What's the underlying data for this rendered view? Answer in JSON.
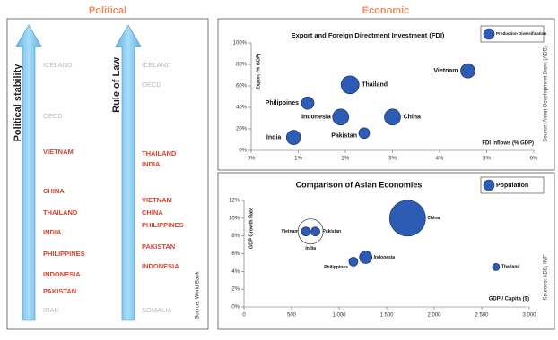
{
  "headers": {
    "political": "Political",
    "economic": "Economic"
  },
  "political": {
    "source": "Source: World Bank",
    "scales": [
      {
        "label": "Political stability",
        "items": [
          "ICELAND",
          "OECD",
          "VIETNAM",
          "CHINA",
          "THAILAND",
          "INDIA",
          "PHILIPPINES",
          "INDONESIA",
          "PAKISTAN",
          "IRAK"
        ],
        "highlight": [
          false,
          false,
          true,
          true,
          true,
          true,
          true,
          true,
          true,
          false
        ]
      },
      {
        "label": "Rule of Law",
        "items": [
          "ICELAND",
          "OECD",
          "THAILAND",
          "INDIA",
          "VIETNAM",
          "CHINA",
          "PHILIPPINES",
          "PAKISTAN",
          "INDONESIA",
          "SOMALIA"
        ],
        "highlight": [
          false,
          false,
          true,
          true,
          true,
          true,
          true,
          true,
          true,
          false
        ]
      }
    ]
  },
  "chart_data": [
    {
      "type": "bubble",
      "title": "Export and Foreign Directment Investment (FDI)",
      "x_label": "FDI Inflows (% GDP)",
      "y_label": "Export (% GDP)",
      "legend": "Production Diversification",
      "source": "Source: Asian Development Bank (ADB)",
      "categories": [
        "India",
        "Philippines",
        "Indonesia",
        "Thailand",
        "Pakistan",
        "China",
        "Vietnam"
      ],
      "x": [
        0.9,
        1.2,
        1.9,
        2.1,
        2.4,
        3.0,
        4.6
      ],
      "values": [
        12,
        44,
        31,
        61,
        16,
        31,
        74
      ],
      "sizes": [
        8,
        7,
        9,
        10,
        6,
        9,
        8
      ],
      "colors": [
        "#2d5cb5",
        "#2d5cb5",
        "#2d5cb5",
        "#2d5cb5",
        "#2d5cb5",
        "#2d5cb5",
        "#2d5cb5"
      ],
      "xlim": [
        0,
        6
      ],
      "ylim": [
        0,
        100
      ],
      "xticks": [
        {
          "value": 0,
          "label": "0%"
        },
        {
          "value": 1,
          "label": "1%"
        },
        {
          "value": 2,
          "label": "2%"
        },
        {
          "value": 3,
          "label": "3%"
        },
        {
          "value": 4,
          "label": "4%"
        },
        {
          "value": 5,
          "label": "5%"
        },
        {
          "value": 6,
          "label": "6%"
        }
      ],
      "yticks": [
        {
          "value": 0,
          "label": "0%"
        },
        {
          "value": 20,
          "label": "20%"
        },
        {
          "value": 40,
          "label": "40%"
        },
        {
          "value": 60,
          "label": "60%"
        },
        {
          "value": 80,
          "label": "80%"
        },
        {
          "value": 100,
          "label": "100%"
        }
      ]
    },
    {
      "type": "bubble",
      "title": "Comparison of Asian Economies",
      "x_label": "GDP / Capita ($)",
      "y_label": "GDP Growth Rate",
      "legend": "Population",
      "source": "Sources: ADB, IMF",
      "categories": [
        "Vietnam",
        "Pakistan",
        "India",
        "Philippines",
        "Indonesia",
        "China",
        "Thailand"
      ],
      "x": [
        650,
        750,
        700,
        1150,
        1280,
        1720,
        2650
      ],
      "values": [
        8.5,
        8.5,
        8.5,
        5.1,
        5.6,
        10,
        4.5
      ],
      "sizes": [
        5,
        5,
        14,
        5,
        7,
        20,
        4
      ],
      "colors": [
        "#2d5cb5",
        "#2d5cb5",
        "none",
        "#2d5cb5",
        "#2d5cb5",
        "#2d5cb5",
        "#2d5cb5"
      ],
      "xlim": [
        0,
        3000
      ],
      "ylim": [
        0,
        12
      ],
      "xticks": [
        0,
        500,
        {
          "value": 1000,
          "label": "1 000"
        },
        {
          "value": 1500,
          "label": "1 500"
        },
        {
          "value": 2000,
          "label": "2 000"
        },
        {
          "value": 2500,
          "label": "2 500"
        },
        {
          "value": 3000,
          "label": "3 000"
        }
      ],
      "yticks": [
        {
          "value": 0,
          "label": "0%"
        },
        {
          "value": 2,
          "label": "2%"
        },
        {
          "value": 4,
          "label": "4%"
        },
        {
          "value": 6,
          "label": "6%"
        },
        {
          "value": 8,
          "label": "8%"
        },
        {
          "value": 10,
          "label": "10%"
        },
        {
          "value": 12,
          "label": "12%"
        }
      ]
    }
  ]
}
